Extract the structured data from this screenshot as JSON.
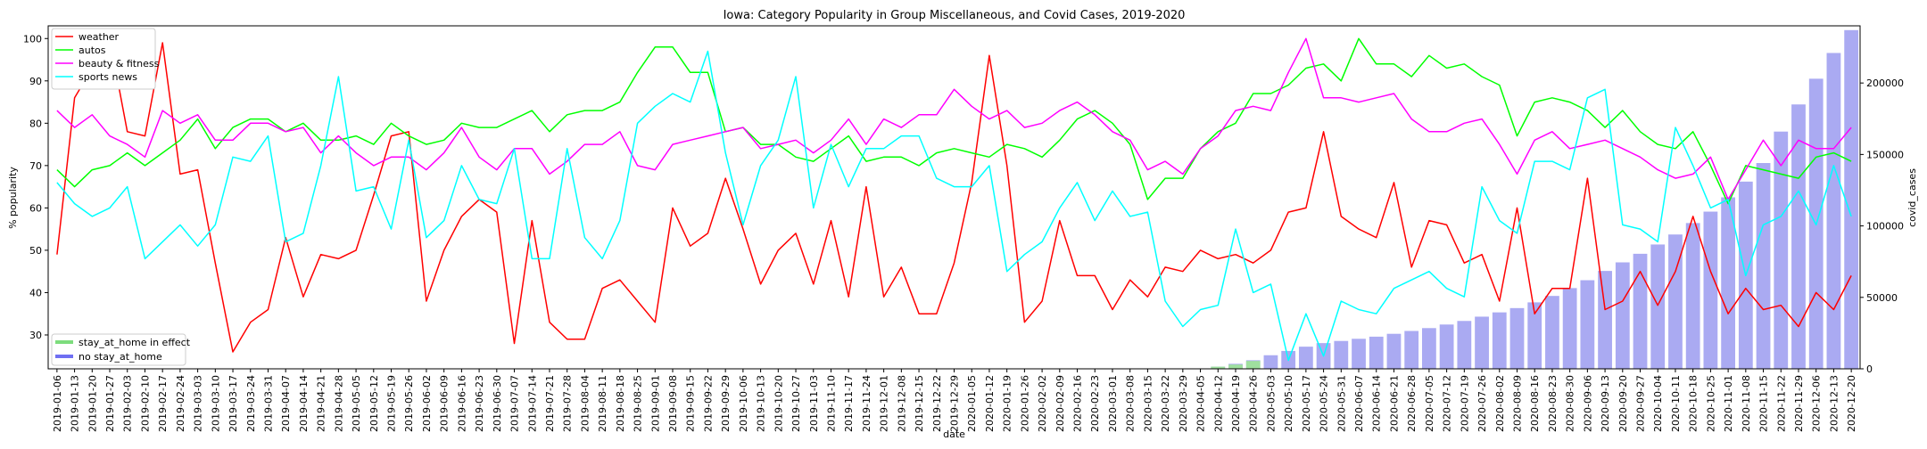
{
  "chart_data": {
    "type": "line",
    "title": "Iowa: Category Popularity in Group Miscellaneous, and Covid Cases, 2019-2020",
    "xlabel": "date",
    "ylabel": "% popularity",
    "y2label": "covid_cases",
    "ylim": [
      22,
      103
    ],
    "y2lim": [
      0,
      240000
    ],
    "yticks": [
      30,
      40,
      50,
      60,
      70,
      80,
      90,
      100
    ],
    "y2ticks": [
      0,
      50000,
      100000,
      150000,
      200000
    ],
    "x": [
      "2019-01-06",
      "2019-01-13",
      "2019-01-20",
      "2019-01-27",
      "2019-02-03",
      "2019-02-10",
      "2019-02-17",
      "2019-02-24",
      "2019-03-03",
      "2019-03-10",
      "2019-03-17",
      "2019-03-24",
      "2019-03-31",
      "2019-04-07",
      "2019-04-14",
      "2019-04-21",
      "2019-04-28",
      "2019-05-05",
      "2019-05-12",
      "2019-05-19",
      "2019-05-26",
      "2019-06-02",
      "2019-06-09",
      "2019-06-16",
      "2019-06-23",
      "2019-06-30",
      "2019-07-07",
      "2019-07-14",
      "2019-07-21",
      "2019-07-28",
      "2019-08-04",
      "2019-08-11",
      "2019-08-18",
      "2019-08-25",
      "2019-09-01",
      "2019-09-08",
      "2019-09-15",
      "2019-09-22",
      "2019-09-29",
      "2019-10-06",
      "2019-10-13",
      "2019-10-20",
      "2019-10-27",
      "2019-11-03",
      "2019-11-10",
      "2019-11-17",
      "2019-11-24",
      "2019-12-01",
      "2019-12-08",
      "2019-12-15",
      "2019-12-22",
      "2019-12-29",
      "2020-01-05",
      "2020-01-12",
      "2020-01-19",
      "2020-01-26",
      "2020-02-02",
      "2020-02-09",
      "2020-02-16",
      "2020-02-23",
      "2020-03-01",
      "2020-03-08",
      "2020-03-15",
      "2020-03-22",
      "2020-03-29",
      "2020-04-05",
      "2020-04-12",
      "2020-04-19",
      "2020-04-26",
      "2020-05-03",
      "2020-05-10",
      "2020-05-17",
      "2020-05-24",
      "2020-05-31",
      "2020-06-07",
      "2020-06-14",
      "2020-06-21",
      "2020-06-28",
      "2020-07-05",
      "2020-07-12",
      "2020-07-19",
      "2020-07-26",
      "2020-08-02",
      "2020-08-09",
      "2020-08-16",
      "2020-08-23",
      "2020-08-30",
      "2020-09-06",
      "2020-09-13",
      "2020-09-20",
      "2020-09-27",
      "2020-10-04",
      "2020-10-11",
      "2020-10-18",
      "2020-10-25",
      "2020-11-01",
      "2020-11-08",
      "2020-11-15",
      "2020-11-22",
      "2020-11-29",
      "2020-12-06",
      "2020-12-13",
      "2020-12-20"
    ],
    "series": [
      {
        "name": "weather",
        "color": "#ff0000",
        "values": [
          49,
          86,
          93,
          100,
          78,
          77,
          99,
          68,
          69,
          47,
          26,
          33,
          36,
          53,
          39,
          49,
          48,
          50,
          63,
          77,
          78,
          38,
          50,
          58,
          62,
          59,
          28,
          57,
          33,
          29,
          29,
          41,
          43,
          38,
          33,
          60,
          51,
          54,
          67,
          55,
          42,
          50,
          54,
          42,
          57,
          39,
          65,
          39,
          46,
          35,
          35,
          47,
          66,
          96,
          70,
          33,
          38,
          57,
          44,
          44,
          36,
          43,
          39,
          46,
          45,
          50,
          48,
          49,
          47,
          50,
          59,
          60,
          78,
          58,
          55,
          53,
          66,
          46,
          57,
          56,
          47,
          49,
          38,
          60,
          35,
          41,
          41,
          67,
          36,
          38,
          45,
          37,
          45,
          58,
          45,
          35,
          41,
          36,
          37,
          32,
          40,
          36,
          44
        ]
      },
      {
        "name": "autos",
        "color": "#00ff00",
        "values": [
          69,
          65,
          69,
          70,
          73,
          70,
          73,
          76,
          81,
          74,
          79,
          81,
          81,
          78,
          80,
          76,
          76,
          77,
          75,
          80,
          77,
          75,
          76,
          80,
          79,
          79,
          81,
          83,
          78,
          82,
          83,
          83,
          85,
          92,
          98,
          98,
          92,
          92,
          78,
          79,
          75,
          75,
          72,
          71,
          74,
          77,
          71,
          72,
          72,
          70,
          73,
          74,
          73,
          72,
          75,
          74,
          72,
          76,
          81,
          83,
          80,
          75,
          62,
          67,
          67,
          74,
          78,
          80,
          87,
          87,
          89,
          93,
          94,
          90,
          100,
          94,
          94,
          91,
          96,
          93,
          94,
          91,
          89,
          77,
          85,
          86,
          85,
          83,
          79,
          83,
          78,
          75,
          74,
          78,
          70,
          61,
          70,
          69,
          68,
          67,
          72,
          73,
          71
        ]
      },
      {
        "name": "beauty & fitness",
        "color": "#ff00ff",
        "values": [
          83,
          79,
          82,
          77,
          75,
          72,
          83,
          80,
          82,
          76,
          76,
          80,
          80,
          78,
          79,
          73,
          77,
          73,
          70,
          72,
          72,
          69,
          73,
          79,
          72,
          69,
          74,
          74,
          68,
          71,
          75,
          75,
          78,
          70,
          69,
          75,
          76,
          77,
          78,
          79,
          74,
          75,
          76,
          73,
          76,
          81,
          75,
          81,
          79,
          82,
          82,
          88,
          84,
          81,
          83,
          79,
          80,
          83,
          85,
          82,
          78,
          76,
          69,
          71,
          68,
          74,
          77,
          83,
          84,
          83,
          92,
          100,
          86,
          86,
          85,
          86,
          87,
          81,
          78,
          78,
          80,
          81,
          75,
          68,
          76,
          78,
          74,
          75,
          76,
          74,
          72,
          69,
          67,
          68,
          72,
          62,
          69,
          76,
          70,
          76,
          74,
          74,
          79
        ]
      },
      {
        "name": "sports news",
        "color": "#00ffff",
        "values": [
          66,
          61,
          58,
          60,
          65,
          48,
          52,
          56,
          51,
          56,
          72,
          71,
          77,
          52,
          54,
          70,
          91,
          64,
          65,
          55,
          76,
          53,
          57,
          70,
          62,
          61,
          74,
          48,
          48,
          74,
          53,
          48,
          57,
          80,
          84,
          87,
          85,
          97,
          73,
          56,
          70,
          76,
          91,
          60,
          75,
          65,
          74,
          74,
          77,
          77,
          67,
          65,
          65,
          70,
          45,
          49,
          52,
          60,
          66,
          57,
          64,
          58,
          59,
          38,
          32,
          36,
          37,
          55,
          40,
          42,
          24,
          35,
          25,
          38,
          36,
          35,
          41,
          43,
          45,
          41,
          39,
          65,
          57,
          54,
          71,
          71,
          69,
          86,
          88,
          56,
          55,
          52,
          79,
          70,
          60,
          62,
          44,
          56,
          58,
          64,
          56,
          70,
          58
        ]
      }
    ],
    "covid_series": {
      "name": "covid_cases",
      "color": "#aaaaf2",
      "values": [
        0,
        0,
        0,
        0,
        0,
        0,
        0,
        0,
        0,
        0,
        0,
        0,
        0,
        0,
        0,
        0,
        0,
        0,
        0,
        0,
        0,
        0,
        0,
        0,
        0,
        0,
        0,
        0,
        0,
        0,
        0,
        0,
        0,
        0,
        0,
        0,
        0,
        0,
        0,
        0,
        0,
        0,
        0,
        0,
        0,
        0,
        0,
        0,
        0,
        0,
        0,
        0,
        0,
        0,
        0,
        0,
        0,
        0,
        0,
        0,
        0,
        0,
        0,
        0,
        17,
        100,
        1500,
        3500,
        6000,
        9500,
        12500,
        15500,
        18000,
        19500,
        21000,
        22500,
        24500,
        26500,
        28500,
        31000,
        33500,
        36500,
        39500,
        42500,
        46500,
        51000,
        56500,
        62000,
        68500,
        74500,
        80500,
        87000,
        94000,
        102000,
        110000,
        120000,
        131000,
        144000,
        166000,
        185000,
        203000,
        221000,
        237000
      ]
    },
    "stay_at_home_values": [
      null,
      null,
      null,
      null,
      null,
      null,
      null,
      null,
      null,
      null,
      null,
      null,
      null,
      null,
      null,
      null,
      null,
      null,
      null,
      null,
      null,
      null,
      null,
      null,
      null,
      null,
      null,
      null,
      null,
      null,
      null,
      null,
      null,
      null,
      null,
      null,
      null,
      null,
      null,
      null,
      null,
      null,
      null,
      null,
      null,
      null,
      null,
      null,
      null,
      null,
      null,
      null,
      null,
      null,
      null,
      null,
      null,
      null,
      null,
      null,
      null,
      null,
      null,
      null,
      null,
      null,
      1500,
      3000,
      5500,
      null,
      null,
      null,
      null,
      null,
      null,
      null,
      null,
      null,
      null,
      null,
      null,
      null,
      null,
      null,
      null,
      null,
      null,
      null,
      null,
      null,
      null,
      null,
      null,
      null,
      null,
      null,
      null,
      null,
      null,
      null,
      null,
      null,
      null
    ],
    "legend_upper": {
      "placement": "upper-left",
      "items": [
        "weather",
        "autos",
        "beauty & fitness",
        "sports news"
      ]
    },
    "legend_lower": {
      "placement": "lower-left",
      "items": [
        {
          "label": "stay_at_home in effect",
          "color": "#7ddc7d"
        },
        {
          "label": "no stay_at_home",
          "color": "#6f6ff2"
        }
      ]
    },
    "grid": false
  }
}
